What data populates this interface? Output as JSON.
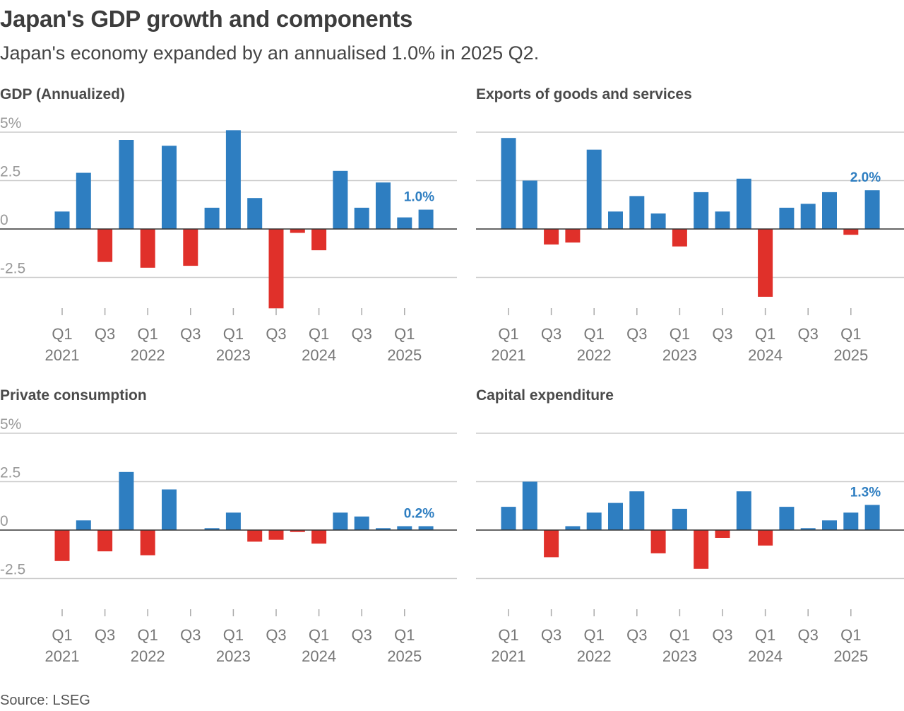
{
  "title": "Japan's GDP growth and components",
  "subtitle": "Japan's economy expanded by an annualised 1.0% in 2025 Q2.",
  "source": "Source: LSEG",
  "colors": {
    "positive": "#2e7ec1",
    "negative": "#e0302a",
    "grid": "#cccccc",
    "zero_line": "#333333"
  },
  "quarters": [
    "2021 Q1",
    "2021 Q2",
    "2021 Q3",
    "2021 Q4",
    "2022 Q1",
    "2022 Q2",
    "2022 Q3",
    "2022 Q4",
    "2023 Q1",
    "2023 Q2",
    "2023 Q3",
    "2023 Q4",
    "2024 Q1",
    "2024 Q2",
    "2024 Q3",
    "2024 Q4",
    "2025 Q1",
    "2025 Q2"
  ],
  "chart_data": [
    {
      "type": "bar",
      "title": "GDP (Annualized)",
      "yticks": [
        {
          "value": 5,
          "label": "5%"
        },
        {
          "value": 2.5,
          "label": "2.5"
        },
        {
          "value": 0,
          "label": "0"
        },
        {
          "value": -2.5,
          "label": "-2.5"
        }
      ],
      "ylim": [
        -4.5,
        5.5
      ],
      "values": [
        0.9,
        2.9,
        -1.7,
        4.6,
        -2.0,
        4.3,
        -1.9,
        1.1,
        5.1,
        1.6,
        -4.1,
        -0.2,
        -1.1,
        3.0,
        1.1,
        2.4,
        0.6,
        1.0
      ],
      "last_label": "1.0%"
    },
    {
      "type": "bar",
      "title": "Exports of goods and services",
      "yticks": [
        {
          "value": 5,
          "label": ""
        },
        {
          "value": 2.5,
          "label": ""
        },
        {
          "value": 0,
          "label": ""
        },
        {
          "value": -2.5,
          "label": ""
        }
      ],
      "ylim": [
        -4.5,
        5.5
      ],
      "values": [
        4.7,
        2.5,
        -0.8,
        -0.7,
        4.1,
        0.9,
        1.7,
        0.8,
        -0.9,
        1.9,
        0.9,
        2.6,
        -3.5,
        1.1,
        1.3,
        1.9,
        -0.3,
        2.0
      ],
      "last_label": "2.0%"
    },
    {
      "type": "bar",
      "title": "Private consumption",
      "yticks": [
        {
          "value": 5,
          "label": "5%"
        },
        {
          "value": 2.5,
          "label": "2.5"
        },
        {
          "value": 0,
          "label": "0"
        },
        {
          "value": -2.5,
          "label": "-2.5"
        }
      ],
      "ylim": [
        -4.5,
        5.5
      ],
      "values": [
        -1.6,
        0.5,
        -1.1,
        3.0,
        -1.3,
        2.1,
        0.0,
        0.1,
        0.9,
        -0.6,
        -0.5,
        -0.1,
        -0.7,
        0.9,
        0.7,
        0.1,
        0.2,
        0.2
      ],
      "last_label": "0.2%"
    },
    {
      "type": "bar",
      "title": "Capital expenditure",
      "yticks": [
        {
          "value": 5,
          "label": ""
        },
        {
          "value": 2.5,
          "label": ""
        },
        {
          "value": 0,
          "label": ""
        },
        {
          "value": -2.5,
          "label": ""
        }
      ],
      "ylim": [
        -4.5,
        5.5
      ],
      "values": [
        1.2,
        2.5,
        -1.4,
        0.2,
        0.9,
        1.4,
        2.0,
        -1.2,
        1.1,
        -2.0,
        -0.4,
        2.0,
        -0.8,
        1.2,
        0.1,
        0.5,
        0.9,
        1.3
      ],
      "last_label": "1.3%"
    }
  ],
  "x_axis": {
    "ticks": [
      {
        "index": 0,
        "quarter": "Q1",
        "year": "2021"
      },
      {
        "index": 2,
        "quarter": "Q3",
        "year": ""
      },
      {
        "index": 4,
        "quarter": "Q1",
        "year": "2022"
      },
      {
        "index": 6,
        "quarter": "Q3",
        "year": ""
      },
      {
        "index": 8,
        "quarter": "Q1",
        "year": "2023"
      },
      {
        "index": 10,
        "quarter": "Q3",
        "year": ""
      },
      {
        "index": 12,
        "quarter": "Q1",
        "year": "2024"
      },
      {
        "index": 14,
        "quarter": "Q3",
        "year": ""
      },
      {
        "index": 16,
        "quarter": "Q1",
        "year": "2025"
      }
    ]
  }
}
